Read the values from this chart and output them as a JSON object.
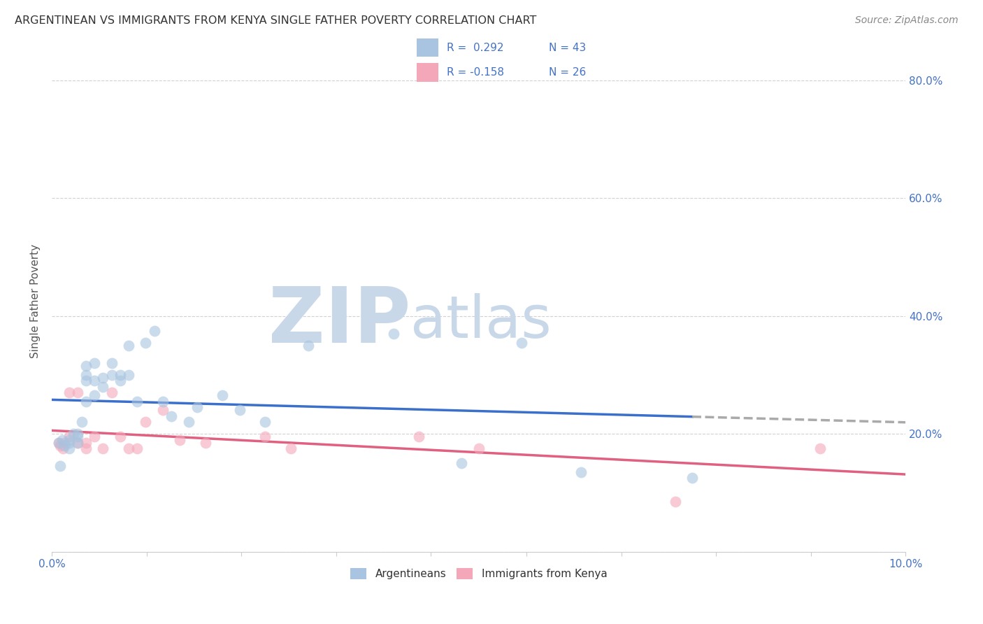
{
  "title": "ARGENTINEAN VS IMMIGRANTS FROM KENYA SINGLE FATHER POVERTY CORRELATION CHART",
  "source": "Source: ZipAtlas.com",
  "ylabel": "Single Father Poverty",
  "xlim": [
    0.0,
    0.1
  ],
  "ylim": [
    0.0,
    0.85
  ],
  "xtick_positions": [
    0.0,
    0.0111,
    0.0222,
    0.0333,
    0.0444,
    0.0556,
    0.0667,
    0.0778,
    0.0889,
    0.1
  ],
  "xticklabels_show": {
    "0": "0.0%",
    "9": "10.0%"
  },
  "ytick_positions": [
    0.0,
    0.2,
    0.4,
    0.6,
    0.8
  ],
  "right_yticklabels": [
    "",
    "20.0%",
    "40.0%",
    "60.0%",
    "80.0%"
  ],
  "argentinean_color": "#a8c4e0",
  "kenya_color": "#f4a7b9",
  "argentinean_line_color": "#3b6fcc",
  "kenya_line_color": "#e06080",
  "trend_ext_color": "#aaaaaa",
  "background_color": "#ffffff",
  "grid_color": "#cccccc",
  "watermark_zip": "ZIP",
  "watermark_atlas": "atlas",
  "watermark_color": "#c8d8e8",
  "legend_label_argentinean": "Argentineans",
  "legend_label_kenya": "Immigrants from Kenya",
  "argentinean_x": [
    0.0008,
    0.001,
    0.0012,
    0.0015,
    0.002,
    0.002,
    0.002,
    0.0025,
    0.003,
    0.003,
    0.003,
    0.0035,
    0.004,
    0.004,
    0.004,
    0.004,
    0.005,
    0.005,
    0.005,
    0.006,
    0.006,
    0.007,
    0.007,
    0.008,
    0.008,
    0.009,
    0.009,
    0.01,
    0.011,
    0.012,
    0.013,
    0.014,
    0.016,
    0.017,
    0.02,
    0.022,
    0.025,
    0.03,
    0.04,
    0.048,
    0.055,
    0.062,
    0.075
  ],
  "argentinean_y": [
    0.185,
    0.145,
    0.19,
    0.18,
    0.175,
    0.185,
    0.19,
    0.2,
    0.195,
    0.185,
    0.2,
    0.22,
    0.255,
    0.29,
    0.3,
    0.315,
    0.29,
    0.32,
    0.265,
    0.28,
    0.295,
    0.3,
    0.32,
    0.3,
    0.29,
    0.35,
    0.3,
    0.255,
    0.355,
    0.375,
    0.255,
    0.23,
    0.22,
    0.245,
    0.265,
    0.24,
    0.22,
    0.35,
    0.37,
    0.15,
    0.355,
    0.135,
    0.125
  ],
  "kenya_x": [
    0.0008,
    0.001,
    0.0013,
    0.0015,
    0.002,
    0.002,
    0.003,
    0.003,
    0.004,
    0.004,
    0.005,
    0.006,
    0.007,
    0.008,
    0.009,
    0.01,
    0.011,
    0.013,
    0.015,
    0.018,
    0.025,
    0.028,
    0.043,
    0.05,
    0.073,
    0.09
  ],
  "kenya_y": [
    0.185,
    0.18,
    0.175,
    0.185,
    0.195,
    0.27,
    0.27,
    0.185,
    0.185,
    0.175,
    0.195,
    0.175,
    0.27,
    0.195,
    0.175,
    0.175,
    0.22,
    0.24,
    0.19,
    0.185,
    0.195,
    0.175,
    0.195,
    0.175,
    0.085,
    0.175
  ],
  "dot_size": 130,
  "dot_alpha": 0.6,
  "line_width": 2.5,
  "arg_line_solid_end": 0.075,
  "arg_line_dash_start": 0.075,
  "arg_line_dash_end": 0.1
}
